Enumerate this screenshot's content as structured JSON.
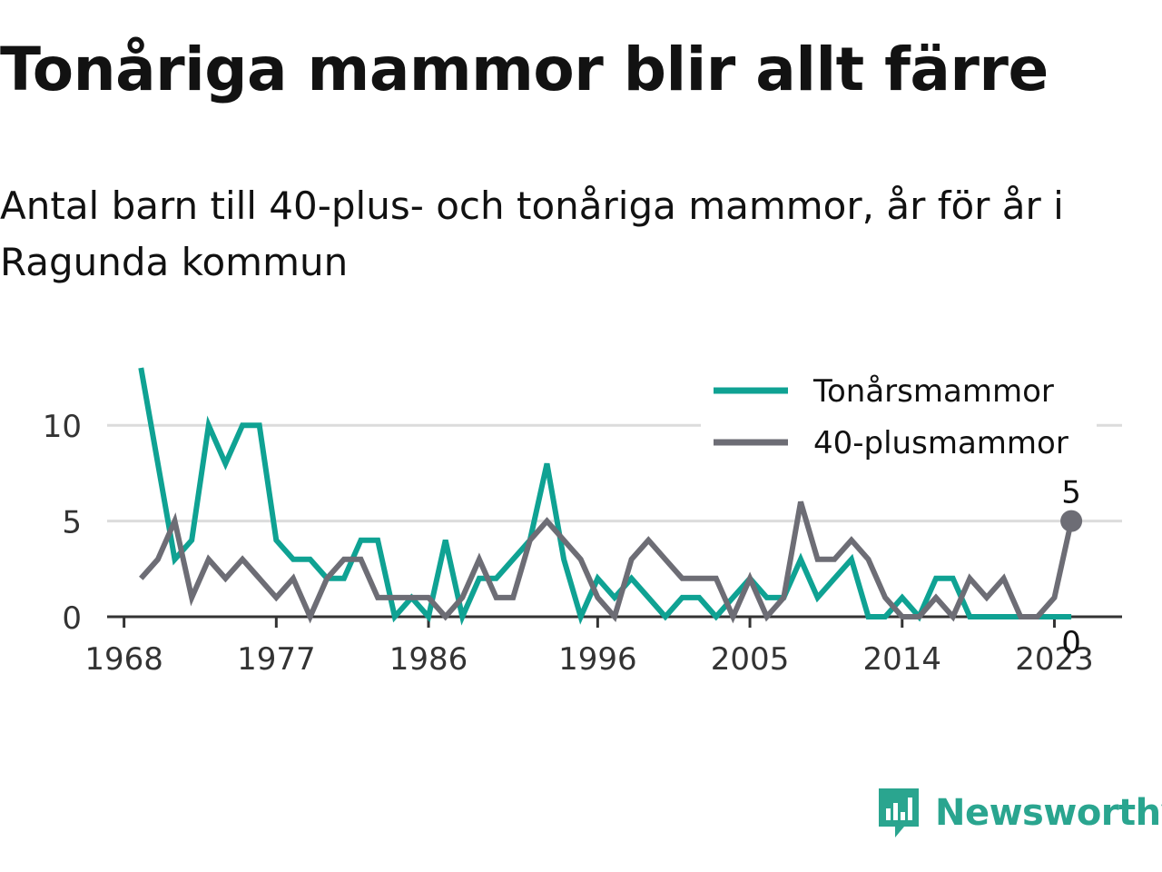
{
  "title": "Tonåriga mammor blir allt färre",
  "subtitle": "Antal barn till 40-plus- och tonåriga mammor, år för år i Ragunda kommun",
  "brand": {
    "name": "Newsworthy",
    "icon": "newsworthy-logo-icon",
    "color": "#2aa58f"
  },
  "chart_data": {
    "type": "line",
    "x": [
      1969,
      1970,
      1971,
      1972,
      1973,
      1974,
      1975,
      1976,
      1977,
      1978,
      1979,
      1980,
      1981,
      1982,
      1983,
      1984,
      1985,
      1986,
      1987,
      1988,
      1989,
      1990,
      1991,
      1992,
      1993,
      1994,
      1995,
      1996,
      1997,
      1998,
      1999,
      2000,
      2001,
      2002,
      2003,
      2004,
      2005,
      2006,
      2007,
      2008,
      2009,
      2010,
      2011,
      2012,
      2013,
      2014,
      2015,
      2016,
      2017,
      2018,
      2019,
      2020,
      2021,
      2022,
      2023,
      2024
    ],
    "x_ticks": [
      1968,
      1977,
      1986,
      1996,
      2005,
      2014,
      2023
    ],
    "y_ticks": [
      0,
      5,
      10
    ],
    "ylim": [
      0,
      13
    ],
    "xlim": [
      1967,
      2027
    ],
    "grid": true,
    "legend_position": "top-right",
    "series": [
      {
        "name": "Tonårsmammor",
        "color": "#0fa293",
        "values": [
          13,
          8,
          3,
          4,
          10,
          8,
          10,
          10,
          4,
          3,
          3,
          2,
          2,
          4,
          4,
          0,
          1,
          0,
          4,
          0,
          2,
          2,
          3,
          4,
          8,
          3,
          0,
          2,
          1,
          2,
          1,
          0,
          1,
          1,
          0,
          1,
          2,
          1,
          1,
          3,
          1,
          2,
          3,
          0,
          0,
          1,
          0,
          2,
          2,
          0,
          0,
          0,
          0,
          0,
          0,
          0
        ],
        "end_label": "0"
      },
      {
        "name": "40-plusmammor",
        "color": "#6d6d75",
        "values": [
          2,
          3,
          5,
          1,
          3,
          2,
          3,
          2,
          1,
          2,
          0,
          2,
          3,
          3,
          1,
          1,
          1,
          1,
          0,
          1,
          3,
          1,
          1,
          4,
          5,
          4,
          3,
          1,
          0,
          3,
          4,
          3,
          2,
          2,
          2,
          0,
          2,
          0,
          1,
          6,
          3,
          3,
          4,
          3,
          1,
          0,
          0,
          1,
          0,
          2,
          1,
          2,
          0,
          0,
          1,
          5
        ],
        "end_label": "5"
      }
    ]
  }
}
